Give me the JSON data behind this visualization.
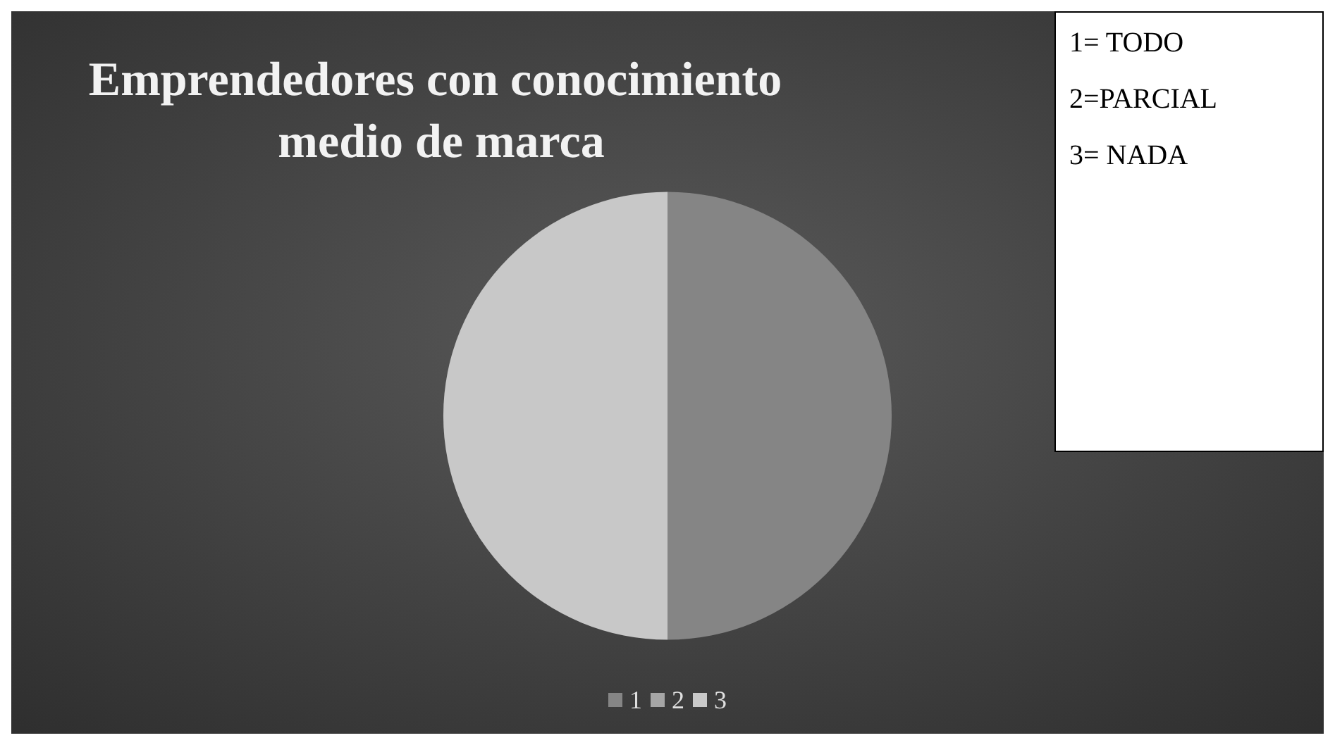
{
  "chart_data": {
    "type": "pie",
    "title": "Emprendedores con conocimiento medio de marca",
    "categories": [
      "1",
      "2",
      "3"
    ],
    "values": [
      50,
      0,
      50
    ],
    "colors": [
      "#858585",
      "#a5a5a5",
      "#c8c8c8"
    ],
    "legend": "bottom",
    "annotations": [
      "1= TODO",
      "2=PARCIAL",
      "3= NADA"
    ]
  }
}
